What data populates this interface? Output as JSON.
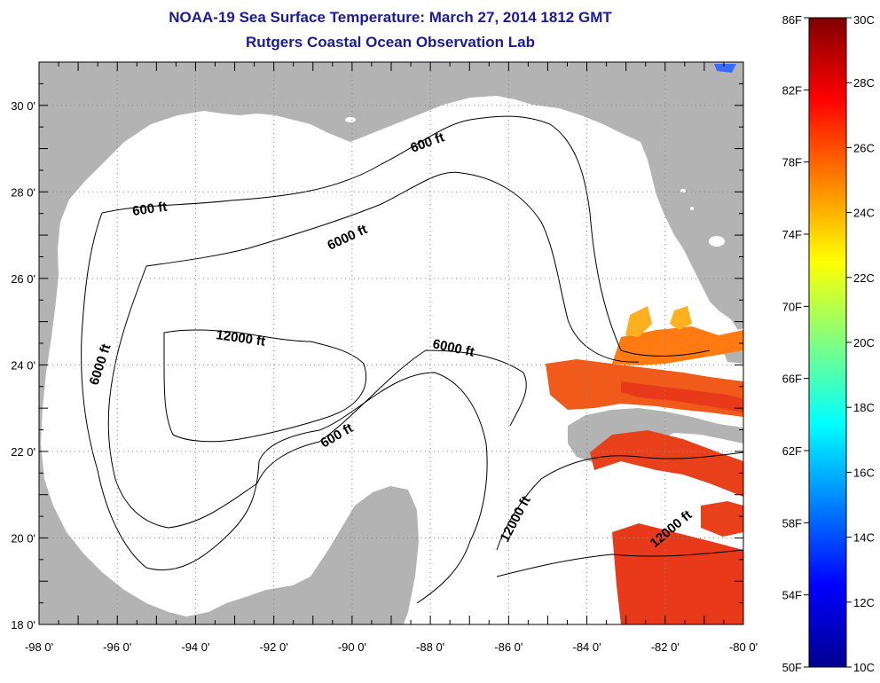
{
  "header": {
    "title": "NOAA-19 Sea Surface Temperature:  March 27, 2014 1812 GMT",
    "subtitle": "Rutgers Coastal Ocean Observation Lab"
  },
  "map": {
    "x_ticks": [
      "-98 0'",
      "-96 0'",
      "-94 0'",
      "-92 0'",
      "-90 0'",
      "-88 0'",
      "-86 0'",
      "-84 0'",
      "-82 0'",
      "-80 0'"
    ],
    "y_ticks": [
      "30 0'",
      "28 0'",
      "26 0'",
      "24 0'",
      "22 0'",
      "20 0'",
      "18 0'"
    ],
    "lon_range": [
      -98,
      -80
    ],
    "lat_range": [
      18,
      31
    ],
    "grid": "dotted",
    "land_color": "#b3b3b3",
    "water_color": "#ffffff",
    "contour_labels": [
      {
        "text": "600 ft"
      },
      {
        "text": "600 ft"
      },
      {
        "text": "600 ft"
      },
      {
        "text": "6000 ft"
      },
      {
        "text": "6000 ft"
      },
      {
        "text": "6000 ft"
      },
      {
        "text": "12000 ft"
      },
      {
        "text": "12000 ft"
      },
      {
        "text": "12000 ft"
      }
    ]
  },
  "colorbar": {
    "left_labels": [
      "86F",
      "82F",
      "78F",
      "74F",
      "70F",
      "66F",
      "62F",
      "58F",
      "54F",
      "50F"
    ],
    "right_labels": [
      "30C",
      "28C",
      "26C",
      "24C",
      "22C",
      "20C",
      "18C",
      "16C",
      "14C",
      "12C",
      "10C"
    ],
    "colors": [
      "#00008f",
      "#0000ff",
      "#0080ff",
      "#00ffff",
      "#80ff80",
      "#ffff00",
      "#ff8000",
      "#ff0000",
      "#800000"
    ]
  },
  "sst_colors": {
    "hot": "#e83a1a",
    "warm": "#ff6a10",
    "mild": "#ffb020"
  }
}
